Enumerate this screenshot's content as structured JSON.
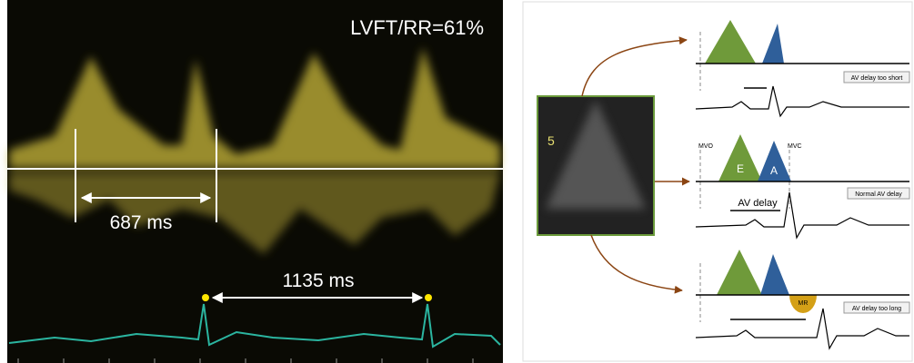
{
  "doppler": {
    "ratio_label": "LVFT/RR=61%",
    "filling_time": "687 ms",
    "rr_interval": "1135 ms"
  },
  "echo": {
    "depth_label": "5"
  },
  "diagram": {
    "rows": [
      {
        "caption": "AV delay too short"
      },
      {
        "caption": "Normal  AV delay",
        "opening": "MVO",
        "e_wave": "E",
        "a_wave": "A",
        "closing": "MVC",
        "delay": "AV delay"
      },
      {
        "caption": "AV delay too long",
        "regurgitation": "MR"
      }
    ]
  }
}
